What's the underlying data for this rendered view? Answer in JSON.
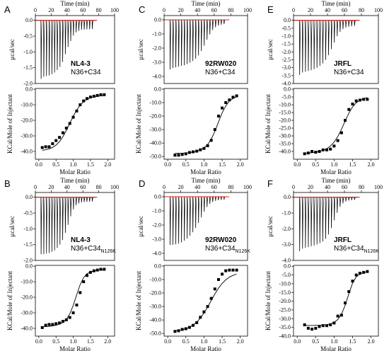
{
  "colors": {
    "baseline": "#e0201b",
    "trace": "#000000",
    "axis": "#000000"
  },
  "chart_data": [
    {
      "type": "scatter",
      "panel": "A",
      "protein": "NL4-3",
      "condition_main": "N36+C34",
      "condition_sub": "",
      "top": {
        "xlabel": "Time (min)",
        "ylabel": "µcal/sec",
        "xlim": [
          0,
          100
        ],
        "ylim": [
          -2.0,
          0.15
        ],
        "xticks": [
          0,
          20,
          40,
          60,
          80,
          100
        ],
        "xticklabels": [
          "0",
          "20",
          "40",
          "60",
          "80",
          "100"
        ],
        "yticks": [
          0.0,
          -0.5,
          -1.0,
          -1.5,
          -2.0
        ],
        "yticklabels": [
          "0.0",
          "-0.5",
          "-1.0",
          "-1.5",
          "-2.0"
        ],
        "injection_times": [
          7,
          10.4,
          13.8,
          17.2,
          20.6,
          24,
          27.4,
          30.8,
          34.2,
          37.6,
          41,
          44.4,
          47.8,
          51.2,
          54.6,
          58,
          61.4,
          64.8,
          68.2,
          71.6
        ],
        "peak_depths": [
          -1.85,
          -1.78,
          -1.76,
          -1.74,
          -1.7,
          -1.65,
          -1.57,
          -1.47,
          -1.31,
          -1.07,
          -0.84,
          -0.65,
          -0.48,
          -0.38,
          -0.33,
          -0.3,
          -0.29,
          -0.28,
          -0.28,
          -0.27
        ]
      },
      "bottom": {
        "xlabel": "Molar Ratio",
        "ylabel": "KCal/Mole of Injectant",
        "xlim": [
          -0.1,
          2.2
        ],
        "ylim": [
          -45,
          0.5
        ],
        "xticks": [
          0.0,
          0.5,
          1.0,
          1.5,
          2.0
        ],
        "xticklabels": [
          "0.0",
          "0.5",
          "1.0",
          "1.5",
          "2.0"
        ],
        "yticks": [
          0,
          -10,
          -20,
          -30,
          -40
        ],
        "yticklabels": [
          "0.0",
          "-10.0",
          "-20.0",
          "-30.0",
          "-40.0"
        ],
        "x": [
          0.1,
          0.2,
          0.3,
          0.4,
          0.5,
          0.6,
          0.7,
          0.8,
          0.9,
          1.0,
          1.1,
          1.2,
          1.3,
          1.4,
          1.5,
          1.6,
          1.7,
          1.8,
          1.9
        ],
        "y": [
          -37.5,
          -37.0,
          -37.0,
          -35.0,
          -33.0,
          -31.0,
          -28.0,
          -25.0,
          -22.0,
          -18.0,
          -14.0,
          -10.0,
          -7.5,
          -6.0,
          -5.0,
          -4.5,
          -4.0,
          -3.5,
          -3.5
        ],
        "fit_y": [
          -39.3,
          -38.9,
          -38.3,
          -37.4,
          -35.9,
          -33.7,
          -30.5,
          -26.4,
          -21.9,
          -17.4,
          -13.4,
          -10.3,
          -8.0,
          -6.5,
          -5.5,
          -4.9,
          -4.5,
          -4.3,
          -4.1
        ]
      }
    },
    {
      "type": "scatter",
      "panel": "B",
      "protein": "NL4-3",
      "condition_main": "N36+C34",
      "condition_sub": "N126K",
      "top": {
        "xlabel": "Time (min)",
        "ylabel": "µcal/sec",
        "xlim": [
          0,
          100
        ],
        "ylim": [
          -2.0,
          0.15
        ],
        "xticks": [
          0,
          20,
          40,
          60,
          80,
          100
        ],
        "xticklabels": [
          "0",
          "20",
          "40",
          "60",
          "80",
          "100"
        ],
        "yticks": [
          0.0,
          -0.5,
          -1.0,
          -1.5,
          -2.0
        ],
        "yticklabels": [
          "0.0",
          "-0.5",
          "-1.0",
          "-1.5",
          "-2.0"
        ],
        "injection_times": [
          7,
          10.4,
          13.8,
          17.2,
          20.6,
          24,
          27.4,
          30.8,
          34.2,
          37.6,
          41,
          44.4,
          47.8,
          51.2,
          54.6,
          58,
          61.4,
          64.8,
          68.2,
          71.6
        ],
        "peak_depths": [
          -1.8,
          -1.8,
          -1.78,
          -1.76,
          -1.72,
          -1.68,
          -1.6,
          -1.5,
          -1.35,
          -1.12,
          -0.87,
          -0.6,
          -0.38,
          -0.25,
          -0.19,
          -0.16,
          -0.15,
          -0.14,
          -0.14,
          -0.13
        ]
      },
      "bottom": {
        "xlabel": "Molar Ratio",
        "ylabel": "KCal/Mole of Injectant",
        "xlim": [
          -0.1,
          2.2
        ],
        "ylim": [
          -45,
          0.5
        ],
        "xticks": [
          0.0,
          0.5,
          1.0,
          1.5,
          2.0
        ],
        "xticklabels": [
          "0.0",
          "0.5",
          "1.0",
          "1.5",
          "2.0"
        ],
        "yticks": [
          0,
          -10,
          -20,
          -30,
          -40
        ],
        "yticklabels": [
          "0.0",
          "-10.0",
          "-20.0",
          "-30.0",
          "-40.0"
        ],
        "x": [
          0.1,
          0.2,
          0.3,
          0.4,
          0.5,
          0.6,
          0.7,
          0.8,
          0.9,
          1.0,
          1.1,
          1.2,
          1.3,
          1.4,
          1.5,
          1.6,
          1.7,
          1.8,
          1.9
        ],
        "y": [
          -39.5,
          -38.0,
          -37.5,
          -37.5,
          -37.0,
          -36.5,
          -35.5,
          -34.5,
          -33.0,
          -30.0,
          -25.0,
          -17.0,
          -10.0,
          -6.0,
          -4.0,
          -3.0,
          -2.5,
          -2.0,
          -2.0
        ],
        "fit_y": [
          -39.0,
          -38.9,
          -38.7,
          -38.4,
          -38.0,
          -37.3,
          -36.2,
          -34.2,
          -30.7,
          -25.2,
          -18.4,
          -11.9,
          -7.4,
          -4.9,
          -3.7,
          -3.1,
          -2.8,
          -2.6,
          -2.5
        ]
      }
    },
    {
      "type": "scatter",
      "panel": "C",
      "protein": "92RW020",
      "condition_main": "N36+C34",
      "condition_sub": "",
      "top": {
        "xlabel": "Time (min)",
        "ylabel": "µcal/sec",
        "xlim": [
          0,
          100
        ],
        "ylim": [
          -4.5,
          0.3
        ],
        "xticks": [
          0,
          20,
          40,
          60,
          80,
          100
        ],
        "xticklabels": [
          "0",
          "20",
          "40",
          "60",
          "80",
          "100"
        ],
        "yticks": [
          0.0,
          -1.0,
          -2.0,
          -3.0,
          -4.0
        ],
        "yticklabels": [
          "0.0",
          "-1.0",
          "-2.0",
          "-3.0",
          "-4.0"
        ],
        "injection_times": [
          7,
          10.4,
          13.8,
          17.2,
          20.6,
          24,
          27.4,
          30.8,
          34.2,
          37.6,
          41,
          44.4,
          47.8,
          51.2,
          54.6,
          58,
          61.4,
          64.8,
          68.2,
          71.6
        ],
        "peak_depths": [
          -3.5,
          -3.4,
          -3.35,
          -3.3,
          -3.25,
          -3.2,
          -3.12,
          -3.02,
          -2.9,
          -2.74,
          -2.5,
          -2.2,
          -1.82,
          -1.4,
          -1.02,
          -0.72,
          -0.52,
          -0.4,
          -0.34,
          -0.3
        ]
      },
      "bottom": {
        "xlabel": "Molar Ratio",
        "ylabel": "KCal/Mole of Injectant",
        "xlim": [
          -0.1,
          2.2
        ],
        "ylim": [
          -52,
          0.5
        ],
        "xticks": [
          0.0,
          0.5,
          1.0,
          1.5,
          2.0
        ],
        "xticklabels": [
          "0.0",
          "0.5",
          "1.0",
          "1.5",
          "2.0"
        ],
        "yticks": [
          0,
          -10,
          -20,
          -30,
          -40,
          -50
        ],
        "yticklabels": [
          "0.0",
          "-10.0",
          "-20.0",
          "-30.0",
          "-40.0",
          "-50.0"
        ],
        "x": [
          0.2,
          0.3,
          0.4,
          0.5,
          0.6,
          0.7,
          0.8,
          0.9,
          1.0,
          1.1,
          1.2,
          1.3,
          1.4,
          1.5,
          1.6,
          1.7,
          1.8,
          1.9
        ],
        "y": [
          -49.0,
          -49.0,
          -48.5,
          -48.0,
          -47.0,
          -46.5,
          -46.0,
          -45.0,
          -44.0,
          -42.0,
          -38.0,
          -30.0,
          -20.0,
          -14.0,
          -10.0,
          -8.0,
          -6.0,
          -5.0
        ],
        "fit_y": [
          -47.7,
          -47.6,
          -47.5,
          -47.3,
          -47.1,
          -46.7,
          -46.1,
          -45.1,
          -43.6,
          -41.1,
          -37.1,
          -31.3,
          -24.4,
          -17.6,
          -12.4,
          -8.9,
          -6.9,
          -5.7
        ]
      }
    },
    {
      "type": "scatter",
      "panel": "D",
      "protein": "92RW020",
      "condition_main": "N36+C34",
      "condition_sub": "N126K",
      "top": {
        "xlabel": "Time (min)",
        "ylabel": "µcal/sec",
        "xlim": [
          0,
          100
        ],
        "ylim": [
          -4.5,
          0.3
        ],
        "xticks": [
          0,
          20,
          40,
          60,
          80,
          100
        ],
        "xticklabels": [
          "0",
          "20",
          "40",
          "60",
          "80",
          "100"
        ],
        "yticks": [
          0.0,
          -1.0,
          -2.0,
          -3.0,
          -4.0
        ],
        "yticklabels": [
          "0.0",
          "-1.0",
          "-2.0",
          "-3.0",
          "-4.0"
        ],
        "injection_times": [
          7,
          10.4,
          13.8,
          17.2,
          20.6,
          24,
          27.4,
          30.8,
          34.2,
          37.6,
          41,
          44.4,
          47.8,
          51.2,
          54.6,
          58,
          61.4,
          64.8,
          68.2,
          71.6
        ],
        "peak_depths": [
          -3.4,
          -3.38,
          -3.35,
          -3.3,
          -3.22,
          -3.1,
          -2.95,
          -2.75,
          -2.5,
          -2.2,
          -1.85,
          -1.45,
          -1.05,
          -0.72,
          -0.5,
          -0.36,
          -0.28,
          -0.24,
          -0.22,
          -0.2
        ]
      },
      "bottom": {
        "xlabel": "Molar Ratio",
        "ylabel": "KCal/Mole of Injectant",
        "xlim": [
          -0.1,
          2.2
        ],
        "ylim": [
          -52,
          0.5
        ],
        "xticks": [
          0.0,
          0.5,
          1.0,
          1.5,
          2.0
        ],
        "xticklabels": [
          "0.0",
          "0.5",
          "1.0",
          "1.5",
          "2.0"
        ],
        "yticks": [
          0,
          -10,
          -20,
          -30,
          -40,
          -50
        ],
        "yticklabels": [
          "0.0",
          "-10.0",
          "-20.0",
          "-30.0",
          "-40.0",
          "-50.0"
        ],
        "x": [
          0.2,
          0.3,
          0.4,
          0.5,
          0.6,
          0.7,
          0.8,
          0.9,
          1.0,
          1.1,
          1.2,
          1.3,
          1.4,
          1.5,
          1.6,
          1.7,
          1.8,
          1.9
        ],
        "y": [
          -48.5,
          -48.0,
          -47.0,
          -46.5,
          -45.5,
          -44.0,
          -42.0,
          -38.0,
          -34.0,
          -30.0,
          -24.0,
          -17.0,
          -10.0,
          -6.0,
          -3.5,
          -3.0,
          -3.0,
          -3.0
        ],
        "fit_y": [
          -48.0,
          -47.7,
          -47.2,
          -46.5,
          -45.4,
          -43.8,
          -41.6,
          -38.6,
          -34.8,
          -30.4,
          -25.5,
          -20.7,
          -16.4,
          -12.9,
          -10.2,
          -8.2,
          -6.9,
          -6.0
        ]
      }
    },
    {
      "type": "scatter",
      "panel": "E",
      "protein": "JRFL",
      "condition_main": "N36+C34",
      "condition_sub": "",
      "top": {
        "xlabel": "Time (min)",
        "ylabel": "µcal/sec",
        "xlim": [
          0,
          100
        ],
        "ylim": [
          -4.0,
          0.3
        ],
        "xticks": [
          0,
          20,
          40,
          60,
          80,
          100
        ],
        "xticklabels": [
          "0",
          "20",
          "40",
          "60",
          "80",
          "100"
        ],
        "yticks": [
          0.0,
          -0.5,
          -1.0,
          -1.5,
          -2.0,
          -2.5,
          -3.0,
          -3.5,
          -4.0
        ],
        "yticklabels": [
          "0.0",
          "-0.5",
          "-1.0",
          "-1.5",
          "-2.0",
          "-2.5",
          "-3.0",
          "-3.5",
          "-4.0"
        ],
        "injection_times": [
          7,
          10.4,
          13.8,
          17.2,
          20.6,
          24,
          27.4,
          30.8,
          34.2,
          37.6,
          41,
          44.4,
          47.8,
          51.2,
          54.6,
          58,
          61.4,
          64.8,
          68.2,
          71.6
        ],
        "peak_depths": [
          -3.45,
          -3.3,
          -3.25,
          -3.2,
          -3.15,
          -3.08,
          -3.0,
          -2.88,
          -2.72,
          -2.5,
          -2.2,
          -1.82,
          -1.4,
          -1.0,
          -0.72,
          -0.55,
          -0.45,
          -0.4,
          -0.37,
          -0.35
        ]
      },
      "bottom": {
        "xlabel": "Molar Ratio",
        "ylabel": "KCal/Mole of Injectant",
        "xlim": [
          -0.1,
          2.2
        ],
        "ylim": [
          -45,
          0.5
        ],
        "xticks": [
          0.0,
          0.5,
          1.0,
          1.5,
          2.0
        ],
        "xticklabels": [
          "0.0",
          "0.5",
          "1.0",
          "1.5",
          "2.0"
        ],
        "yticks": [
          0,
          -5,
          -10,
          -15,
          -20,
          -25,
          -30,
          -35,
          -40
        ],
        "yticklabels": [
          "0.0",
          "-5.0",
          "-10.0",
          "-15.0",
          "-20.0",
          "-25.0",
          "-30.0",
          "-35.0",
          "-40.0"
        ],
        "x": [
          0.2,
          0.3,
          0.4,
          0.5,
          0.6,
          0.7,
          0.8,
          0.9,
          1.0,
          1.1,
          1.2,
          1.3,
          1.4,
          1.5,
          1.6,
          1.7,
          1.8,
          1.9
        ],
        "y": [
          -41.5,
          -41.0,
          -40.0,
          -40.5,
          -40.0,
          -39.0,
          -39.0,
          -38.5,
          -36.5,
          -33.0,
          -28.0,
          -20.0,
          -13.0,
          -9.5,
          -7.5,
          -7.0,
          -6.5,
          -6.5
        ],
        "fit_y": [
          -41.2,
          -41.0,
          -40.8,
          -40.5,
          -40.0,
          -39.3,
          -38.2,
          -36.5,
          -34.0,
          -30.4,
          -25.7,
          -20.4,
          -15.4,
          -11.4,
          -8.7,
          -7.0,
          -6.0,
          -5.4
        ]
      }
    },
    {
      "type": "scatter",
      "panel": "F",
      "protein": "JRFL",
      "condition_main": "N36+C34",
      "condition_sub": "N126K",
      "top": {
        "xlabel": "Time (min)",
        "ylabel": "µcal/sec",
        "xlim": [
          0,
          100
        ],
        "ylim": [
          -4.0,
          0.3
        ],
        "xticks": [
          0,
          20,
          40,
          60,
          80,
          100
        ],
        "xticklabels": [
          "0",
          "20",
          "40",
          "60",
          "80",
          "100"
        ],
        "yticks": [
          0.0,
          -1.0,
          -2.0,
          -3.0,
          -4.0
        ],
        "yticklabels": [
          "0.0",
          "-1.0",
          "-2.0",
          "-3.0",
          "-4.0"
        ],
        "injection_times": [
          7,
          10.4,
          13.8,
          17.2,
          20.6,
          24,
          27.4,
          30.8,
          34.2,
          37.6,
          41,
          44.4,
          47.8,
          51.2,
          54.6,
          58,
          61.4,
          64.8,
          68.2,
          71.6
        ],
        "peak_depths": [
          -3.4,
          -3.25,
          -3.2,
          -3.15,
          -3.1,
          -3.05,
          -2.98,
          -2.9,
          -2.8,
          -2.62,
          -2.35,
          -1.95,
          -1.45,
          -0.98,
          -0.6,
          -0.38,
          -0.26,
          -0.2,
          -0.18,
          -0.16
        ]
      },
      "bottom": {
        "xlabel": "Molar Ratio",
        "ylabel": "KCal/Mole of Injectant",
        "xlim": [
          -0.1,
          2.2
        ],
        "ylim": [
          -40,
          0.5
        ],
        "xticks": [
          0.0,
          0.5,
          1.0,
          1.5,
          2.0
        ],
        "xticklabels": [
          "0.0",
          "0.5",
          "1.0",
          "1.5",
          "2.0"
        ],
        "yticks": [
          0,
          -5,
          -10,
          -15,
          -20,
          -25,
          -30,
          -35,
          -40
        ],
        "yticklabels": [
          "0.0",
          "-5.0",
          "-10.0",
          "-15.0",
          "-20.0",
          "-25.0",
          "-30.0",
          "-35.0",
          "-40.0"
        ],
        "x": [
          0.2,
          0.3,
          0.4,
          0.5,
          0.6,
          0.7,
          0.8,
          0.9,
          1.0,
          1.1,
          1.2,
          1.3,
          1.4,
          1.5,
          1.6,
          1.7,
          1.8,
          1.9
        ],
        "y": [
          -33.5,
          -35.5,
          -36.0,
          -35.5,
          -34.5,
          -34.0,
          -34.0,
          -33.5,
          -32.5,
          -28.5,
          -28.0,
          -21.0,
          -14.5,
          -8.5,
          -5.0,
          -4.0,
          -3.5,
          -3.0
        ],
        "fit_y": [
          -33.9,
          -33.9,
          -33.9,
          -33.8,
          -33.8,
          -33.6,
          -33.4,
          -33.0,
          -32.1,
          -30.5,
          -27.4,
          -22.3,
          -15.7,
          -9.7,
          -6.1,
          -4.4,
          -3.6,
          -3.2
        ]
      }
    }
  ]
}
